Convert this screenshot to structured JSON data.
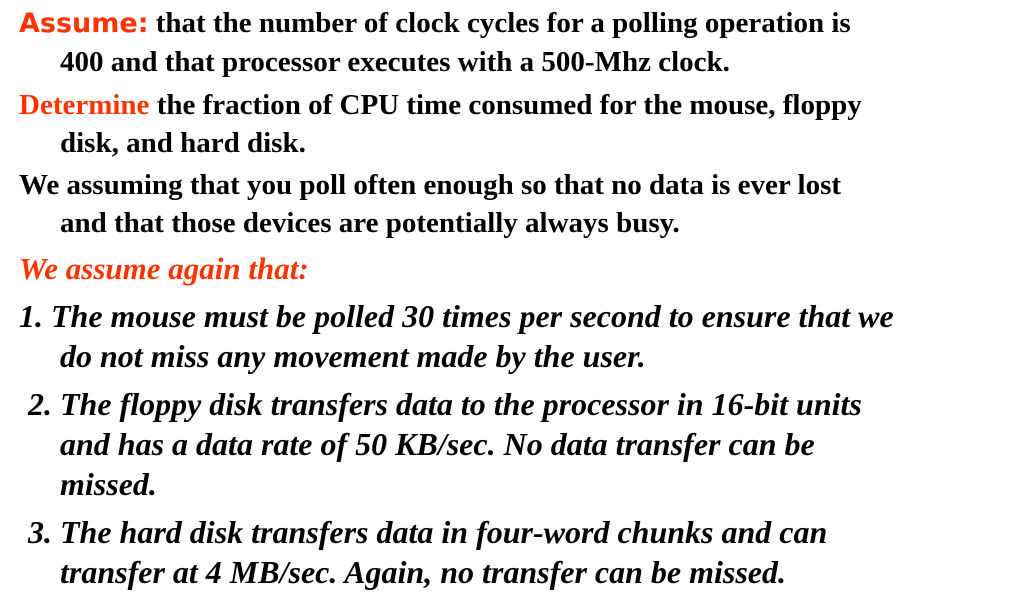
{
  "colors": {
    "accent": "#ff3300",
    "text": "#000000",
    "background": "#ffffff"
  },
  "assume": {
    "keyword": "Assume:",
    "line1": "that the number of clock cycles for a polling operation is",
    "line2": "400 and that processor executes with a 500-Mhz clock."
  },
  "determine": {
    "keyword": "Determine",
    "line1": "the fraction of CPU time consumed for the mouse, floppy",
    "line2": "disk, and hard disk."
  },
  "assuming": {
    "line1": "We assuming that you poll often enough so that no data is ever lost",
    "line2": "and that those devices are potentially always busy."
  },
  "assume_again": {
    "heading": "We assume again that:"
  },
  "items": [
    {
      "line1": "1. The mouse must be polled 30 times per second to ensure that we",
      "line2": "do not miss any movement made by the user."
    },
    {
      "line1": "2. The floppy disk transfers data to the processor in 16-bit units",
      "line2": "and has a data rate of 50 KB/sec. No data transfer can be",
      "line3": "missed."
    },
    {
      "line1": "3. The hard disk transfers data in four-word chunks and can",
      "line2": "transfer at 4 MB/sec. Again, no transfer can be missed."
    }
  ]
}
